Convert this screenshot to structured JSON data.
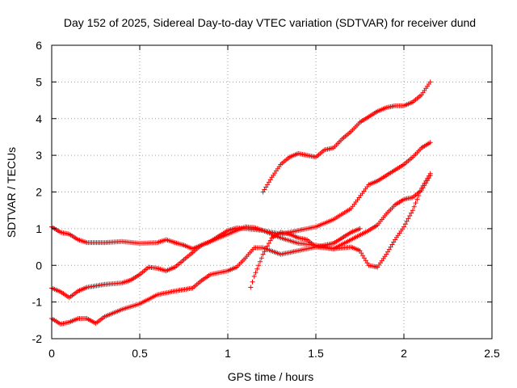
{
  "chart_data": {
    "type": "scatter",
    "title": "Day 152 of 2025, Sidereal Day-to-day VTEC variation (SDTVAR) for receiver dund",
    "xlabel": "GPS time / hours",
    "ylabel": "SDTVAR / TECUs",
    "xlim": [
      0,
      2.5
    ],
    "ylim": [
      -2,
      6
    ],
    "xticks": [
      0,
      0.5,
      1,
      1.5,
      2,
      2.5
    ],
    "yticks": [
      -2,
      -1,
      0,
      1,
      2,
      3,
      4,
      5,
      6
    ],
    "x_tick_labels": [
      "0",
      "0.5",
      "1",
      "1.5",
      "2",
      "2.5"
    ],
    "y_tick_labels": [
      "-2",
      "-1",
      "0",
      "1",
      "2",
      "3",
      "4",
      "5",
      "6"
    ],
    "grid": true,
    "marker": "plus",
    "color": "#ff0000",
    "series": [
      {
        "x": [
          0.0,
          0.05,
          0.1,
          0.15,
          0.2,
          0.3,
          0.4,
          0.5,
          0.6,
          0.65,
          0.7,
          0.75,
          0.8,
          0.85,
          0.9,
          0.95,
          1.0,
          1.05,
          1.1,
          1.2,
          1.3,
          1.4,
          1.5,
          1.6,
          1.7,
          1.75,
          1.8,
          1.85,
          1.9,
          1.95,
          2.0,
          2.05,
          2.1,
          2.15
        ],
        "y": [
          1.05,
          0.9,
          0.85,
          0.7,
          0.62,
          0.62,
          0.65,
          0.6,
          0.62,
          0.7,
          0.62,
          0.55,
          0.45,
          0.55,
          0.65,
          0.8,
          0.95,
          1.02,
          1.0,
          0.95,
          0.75,
          0.6,
          0.55,
          0.45,
          0.5,
          0.4,
          0.0,
          -0.05,
          0.3,
          0.7,
          1.05,
          1.5,
          2.1,
          2.5
        ]
      },
      {
        "x": [
          0.0,
          0.05,
          0.1,
          0.15,
          0.2,
          0.3,
          0.4,
          0.45,
          0.5,
          0.55,
          0.6,
          0.65,
          0.7,
          0.75,
          0.8,
          0.85,
          0.9,
          1.0,
          1.1,
          1.15,
          1.2,
          1.3,
          1.4,
          1.5,
          1.6,
          1.7,
          1.8,
          1.85,
          1.9,
          1.95,
          2.0,
          2.05,
          2.1,
          2.15
        ],
        "y": [
          -0.62,
          -0.72,
          -0.88,
          -0.7,
          -0.6,
          -0.52,
          -0.48,
          -0.4,
          -0.25,
          -0.05,
          -0.08,
          -0.15,
          -0.05,
          0.15,
          0.35,
          0.55,
          0.65,
          0.85,
          1.05,
          1.03,
          0.95,
          0.85,
          0.95,
          1.05,
          1.25,
          1.55,
          2.2,
          2.3,
          2.45,
          2.6,
          2.75,
          2.95,
          3.2,
          3.35
        ]
      },
      {
        "x": [
          0.0,
          0.05,
          0.1,
          0.15,
          0.2,
          0.25,
          0.3,
          0.4,
          0.5,
          0.6,
          0.7,
          0.8,
          0.85,
          0.9,
          1.0,
          1.05,
          1.1,
          1.15,
          1.2,
          1.3,
          1.4,
          1.5,
          1.6,
          1.7,
          1.8,
          1.85,
          1.9,
          1.95,
          2.0,
          2.05,
          2.1,
          2.15
        ],
        "y": [
          -1.45,
          -1.6,
          -1.55,
          -1.45,
          -1.45,
          -1.58,
          -1.4,
          -1.2,
          -1.05,
          -0.8,
          -0.7,
          -0.62,
          -0.42,
          -0.25,
          -0.15,
          -0.05,
          0.2,
          0.48,
          0.48,
          0.3,
          0.4,
          0.5,
          0.45,
          0.7,
          0.95,
          1.1,
          1.4,
          1.65,
          1.8,
          1.85,
          2.05,
          2.45
        ]
      },
      {
        "x": [
          1.13,
          1.15,
          1.2,
          1.25,
          1.3,
          1.35,
          1.4,
          1.45,
          1.5,
          1.55,
          1.6,
          1.65,
          1.7,
          1.75
        ],
        "y": [
          -0.6,
          -0.3,
          0.3,
          0.75,
          0.9,
          0.85,
          0.75,
          0.7,
          0.5,
          0.55,
          0.6,
          0.75,
          0.9,
          1.0
        ]
      },
      {
        "x": [
          1.2,
          1.25,
          1.3,
          1.35,
          1.4,
          1.45,
          1.5,
          1.55,
          1.6,
          1.65,
          1.7,
          1.75,
          1.8,
          1.85,
          1.9,
          1.95,
          2.0,
          2.05,
          2.1,
          2.15
        ],
        "y": [
          2.0,
          2.4,
          2.75,
          2.95,
          3.05,
          3.0,
          2.95,
          3.15,
          3.2,
          3.45,
          3.65,
          3.9,
          4.05,
          4.2,
          4.3,
          4.35,
          4.35,
          4.45,
          4.65,
          5.0
        ]
      }
    ]
  }
}
